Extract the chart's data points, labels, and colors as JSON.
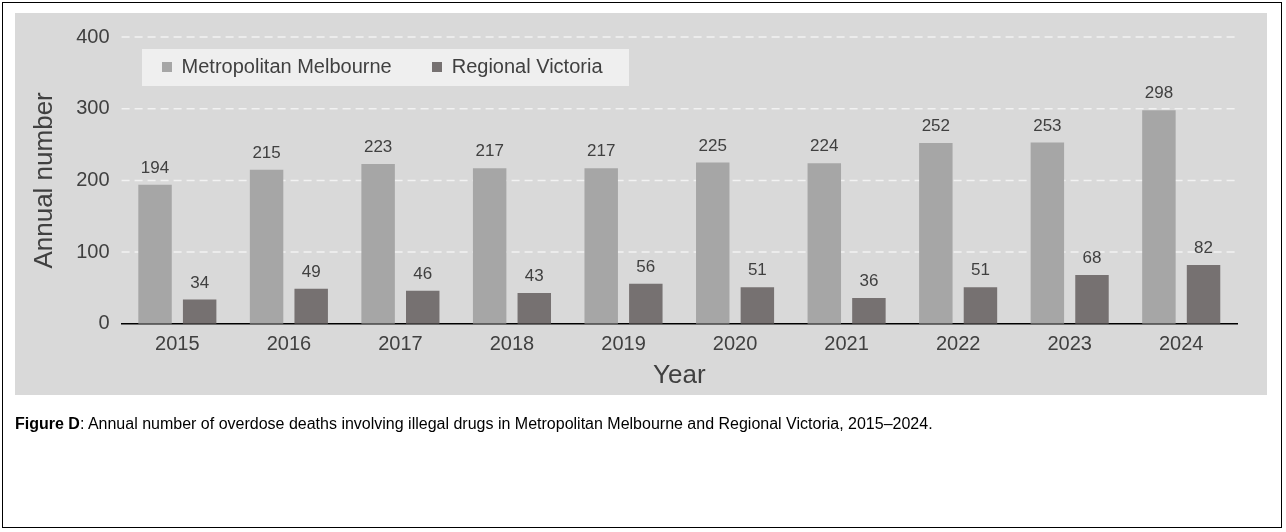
{
  "chart_data": {
    "type": "bar",
    "xlabel": "Year",
    "ylabel": "Annual number",
    "categories": [
      "2015",
      "2016",
      "2017",
      "2018",
      "2019",
      "2020",
      "2021",
      "2022",
      "2023",
      "2024"
    ],
    "series": [
      {
        "name": "Metropolitan Melbourne",
        "color": "#a6a6a6",
        "values": [
          194,
          215,
          223,
          217,
          217,
          225,
          224,
          252,
          253,
          298
        ]
      },
      {
        "name": "Regional Victoria",
        "color": "#767171",
        "values": [
          34,
          49,
          46,
          43,
          56,
          51,
          36,
          51,
          68,
          82
        ]
      }
    ],
    "ylim": [
      0,
      400
    ],
    "yticks": [
      0,
      100,
      200,
      300,
      400
    ],
    "grid": "y",
    "legend": "top left",
    "data_labels": true,
    "annotations": [
      "Figure D: Annual number of overdose deaths involving illegal drugs in Metropolitan Melbourne and Regional Victoria, 2015–2024."
    ]
  }
}
